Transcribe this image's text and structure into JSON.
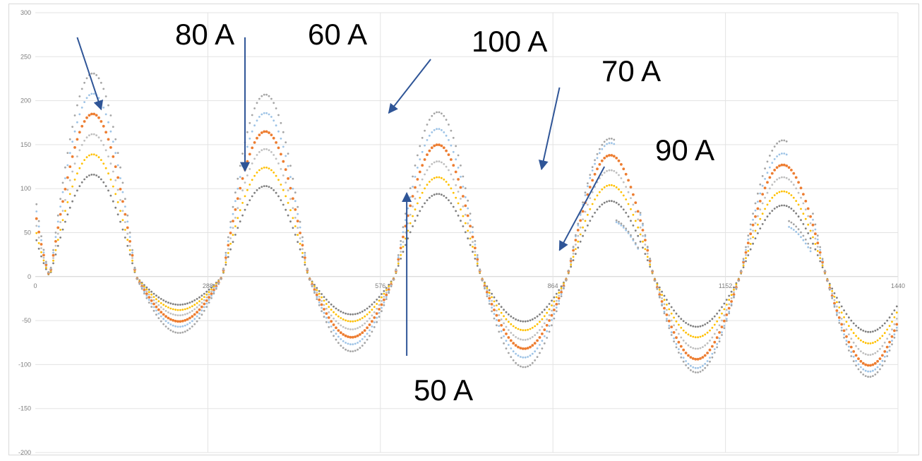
{
  "chart_data": {
    "type": "scatter",
    "title": "",
    "xlabel": "",
    "ylabel": "",
    "xlim": [
      0,
      1440
    ],
    "ylim": [
      -200,
      300
    ],
    "x_ticks": [
      0,
      288,
      576,
      864,
      1152,
      1440
    ],
    "y_ticks": [
      -200,
      -150,
      -100,
      -50,
      0,
      50,
      100,
      150,
      200,
      250,
      300
    ],
    "x_tick_labels": [
      "0",
      "288",
      "576",
      "864",
      "1152",
      "1440"
    ],
    "y_tick_labels": [
      "-200",
      "-150",
      "-100",
      "-50",
      "0",
      "50",
      "100",
      "150",
      "200",
      "250",
      "300"
    ],
    "grid": true,
    "legend": "none",
    "series": [
      {
        "color": "#7f7f7f",
        "peaks": [
          116,
          103,
          94,
          86,
          81
        ],
        "troughs": [
          -32,
          -43,
          -51,
          -57,
          -63
        ],
        "clipped": false
      },
      {
        "color": "#ffc000",
        "peaks": [
          139,
          124,
          113,
          104,
          97
        ],
        "troughs": [
          -38,
          -51,
          -61,
          -69,
          -76
        ],
        "clipped": false
      },
      {
        "color": "#bfbfbf",
        "peaks": [
          162,
          145,
          131,
          121,
          113
        ],
        "troughs": [
          -44,
          -60,
          -72,
          -82,
          -89
        ],
        "clipped": false
      },
      {
        "color": "#ed7d31",
        "peaks": [
          185,
          165,
          150,
          138,
          127
        ],
        "troughs": [
          -51,
          -69,
          -82,
          -94,
          -101
        ],
        "clipped": false
      },
      {
        "color": "#9dc3e6",
        "peaks": [
          208,
          186,
          168,
          152,
          140
        ],
        "troughs": [
          -57,
          -77,
          -92,
          -104,
          -108
        ],
        "clipped": true
      },
      {
        "color": "#a5a5a5",
        "peaks": [
          231,
          207,
          187,
          157,
          155
        ],
        "troughs": [
          -64,
          -85,
          -103,
          -109,
          -114
        ],
        "clipped": true
      }
    ],
    "annotations": [
      {
        "text": "80 A",
        "tx": 70,
        "ty": 272,
        "ax": 110,
        "ay": 190
      },
      {
        "text": "60 A",
        "tx": 350,
        "ty": 272,
        "ax": 350,
        "ay": 120
      },
      {
        "text": "100 A",
        "tx": 660,
        "ty": 247,
        "ax": 590,
        "ay": 186
      },
      {
        "text": "70 A",
        "tx": 875,
        "ty": 215,
        "ax": 845,
        "ay": 122
      },
      {
        "text": "90 A",
        "tx": 950,
        "ty": 125,
        "ax": 875,
        "ay": 30
      },
      {
        "text": "50 A",
        "tx": 620,
        "ty": -90,
        "ax": 620,
        "ay": 95
      }
    ]
  }
}
